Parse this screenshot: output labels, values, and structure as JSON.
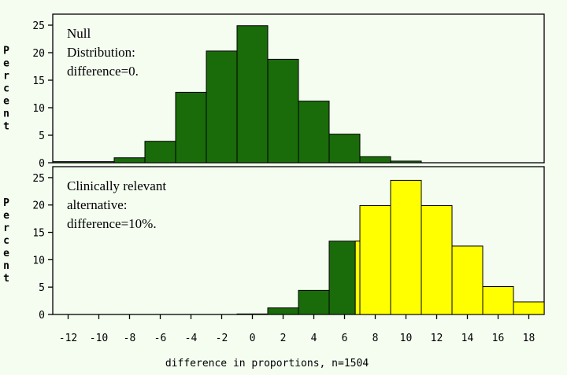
{
  "chart_data": {
    "type": "bar",
    "xlabel": "difference in proportions, n=1504",
    "ylabel": "Percent",
    "xlim": [
      -13,
      19
    ],
    "x_ticks": [
      -12,
      -10,
      -8,
      -6,
      -4,
      -2,
      0,
      2,
      4,
      6,
      8,
      10,
      12,
      14,
      16,
      18
    ],
    "y_ticks": [
      0,
      5,
      10,
      15,
      20,
      25
    ],
    "panels": [
      {
        "annotation": [
          "Null",
          "Distribution:",
          "difference=0."
        ],
        "ylim": [
          0,
          27
        ],
        "series": [
          {
            "color": "#1a6b0a",
            "bars": [
              {
                "x0": -13,
                "x1": -9,
                "value": 0.2
              },
              {
                "x0": -9,
                "x1": -7,
                "value": 0.9
              },
              {
                "x0": -7,
                "x1": -5,
                "value": 3.9
              },
              {
                "x0": -5,
                "x1": -3,
                "value": 12.8
              },
              {
                "x0": -3,
                "x1": -1,
                "value": 20.3
              },
              {
                "x0": -1,
                "x1": 1,
                "value": 24.9
              },
              {
                "x0": 1,
                "x1": 3,
                "value": 18.8
              },
              {
                "x0": 3,
                "x1": 5,
                "value": 11.2
              },
              {
                "x0": 5,
                "x1": 7,
                "value": 5.2
              },
              {
                "x0": 7,
                "x1": 9,
                "value": 1.1
              },
              {
                "x0": 9,
                "x1": 11,
                "value": 0.3
              }
            ]
          }
        ]
      },
      {
        "annotation": [
          "Clinically relevant",
          "alternative:",
          "difference=10%."
        ],
        "ylim": [
          0,
          27
        ],
        "series": [
          {
            "color": "#1a6b0a",
            "bars": [
              {
                "x0": -1,
                "x1": 1,
                "value": 0.1
              },
              {
                "x0": 1,
                "x1": 3,
                "value": 1.2
              },
              {
                "x0": 3,
                "x1": 5,
                "value": 4.4
              },
              {
                "x0": 5,
                "x1": 7,
                "value": 13.4
              }
            ]
          },
          {
            "color": "#ffff00",
            "bars": [
              {
                "x0": 6.7,
                "x1": 7,
                "value": 13.4
              },
              {
                "x0": 7,
                "x1": 9,
                "value": 19.9
              },
              {
                "x0": 9,
                "x1": 11,
                "value": 24.5
              },
              {
                "x0": 11,
                "x1": 13,
                "value": 19.9
              },
              {
                "x0": 13,
                "x1": 15,
                "value": 12.5
              },
              {
                "x0": 15,
                "x1": 17,
                "value": 5.1
              },
              {
                "x0": 17,
                "x1": 19,
                "value": 2.3
              }
            ]
          }
        ]
      }
    ]
  }
}
